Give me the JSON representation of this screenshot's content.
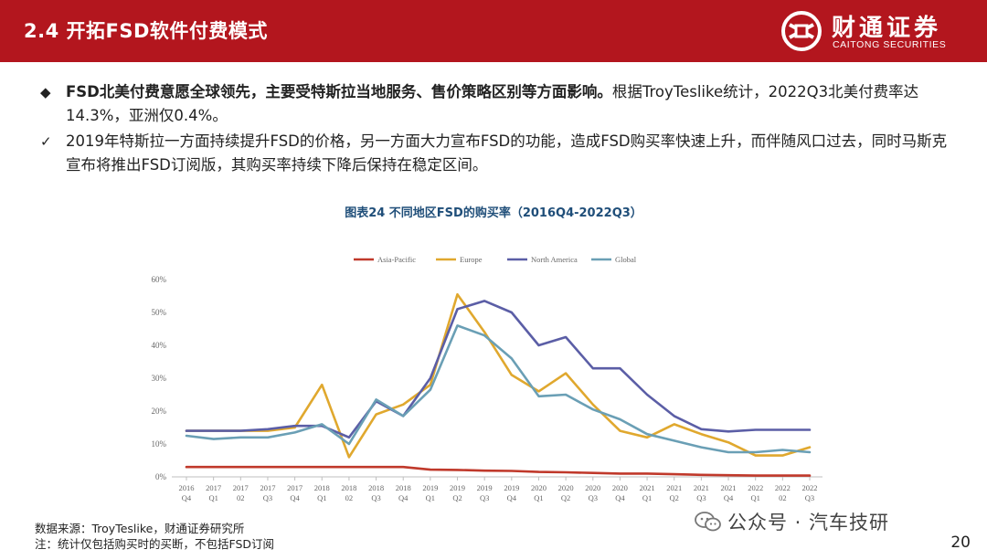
{
  "header": {
    "title": "2.4 开拓FSD软件付费模式",
    "logo_cn": "财通证券",
    "logo_en": "CAITONG SECURITIES"
  },
  "bullets": [
    {
      "marker": "◆",
      "bold": "FSD北美付费意愿全球领先，主要受特斯拉当地服务、售价策略区别等方面影响。",
      "text": "根据TroyTeslike统计，2022Q3北美付费率达14.3%，亚洲仅0.4%。"
    },
    {
      "marker": "✓",
      "bold": "",
      "text": "2019年特斯拉一方面持续提升FSD的价格，另一方面大力宣布FSD的功能，造成FSD购买率快速上升，而伴随风口过去，同时马斯克宣布将推出FSD订阅版，其购买率持续下降后保持在稳定区间。"
    }
  ],
  "chart_data": {
    "type": "line",
    "title": "图表24  不同地区FSD的购买率（2016Q4-2022Q3）",
    "x_top": [
      "2016",
      "2017",
      "2017",
      "2017",
      "2017",
      "2018",
      "2018",
      "2018",
      "2018",
      "2019",
      "2019",
      "2019",
      "2019",
      "2020",
      "2020",
      "2020",
      "2020",
      "2021",
      "2021",
      "2021",
      "2021",
      "2022",
      "2022",
      "2022"
    ],
    "x_bottom": [
      "Q4",
      "Q1",
      "02",
      "Q3",
      "Q4",
      "Q1",
      "02",
      "Q3",
      "Q4",
      "Q1",
      "Q2",
      "Q3",
      "Q4",
      "Q1",
      "Q2",
      "Q3",
      "Q4",
      "Q1",
      "Q2",
      "Q3",
      "Q4",
      "Q1",
      "02",
      "Q3"
    ],
    "y_ticks": [
      "0%",
      "10%",
      "20%",
      "30%",
      "40%",
      "50%",
      "60%"
    ],
    "ylim": [
      0,
      60
    ],
    "legend_position": "top",
    "grid": false,
    "series": [
      {
        "name": "Asia-Pacific",
        "color": "#c0392b",
        "values": [
          3,
          3,
          3,
          3,
          3,
          3,
          3,
          3,
          3,
          2.2,
          2.1,
          1.9,
          1.8,
          1.5,
          1.4,
          1.2,
          1,
          1,
          0.8,
          0.6,
          0.5,
          0.4,
          0.4,
          0.4
        ]
      },
      {
        "name": "Europe",
        "color": "#e0a82e",
        "values": [
          14,
          14,
          14,
          14,
          15,
          28,
          6,
          19,
          22,
          28,
          55.5,
          44,
          31,
          26,
          31.5,
          22,
          14,
          12,
          16,
          13,
          10.5,
          6.5,
          6.5,
          9
        ]
      },
      {
        "name": "North America",
        "color": "#5b5ea6",
        "values": [
          14,
          14,
          14,
          14.5,
          15.5,
          15.5,
          12,
          23,
          18.5,
          30,
          51,
          53.5,
          50,
          40,
          42.5,
          33,
          33,
          25,
          18.5,
          14.5,
          13.8,
          14.3,
          14.3,
          14.3
        ]
      },
      {
        "name": "Global",
        "color": "#6a9fb5",
        "values": [
          12.5,
          11.5,
          12,
          12,
          13.5,
          16,
          10,
          23.5,
          18.5,
          26.5,
          46,
          43,
          36,
          24.5,
          25,
          20.5,
          17.5,
          13,
          11,
          9,
          7.5,
          7.5,
          8.2,
          7.5
        ]
      }
    ]
  },
  "footer": {
    "source": "数据来源：TroyTeslike，财通证券研究所",
    "note": "注：统计仅包括购买时的买断，不包括FSD订阅",
    "watermark": "公众号 · 汽车技研",
    "page_number": "20"
  }
}
